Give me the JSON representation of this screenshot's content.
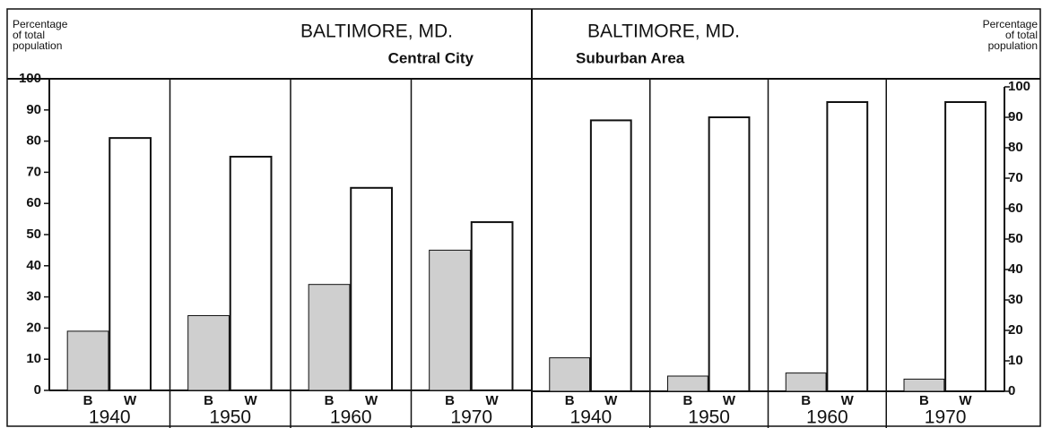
{
  "chart_data": [
    {
      "type": "bar",
      "title": "BALTIMORE, MD.",
      "subtitle": "Central City",
      "y_label": [
        "Percentage",
        "of total",
        "population"
      ],
      "categories": [
        "1940",
        "1950",
        "1960",
        "1970"
      ],
      "series": [
        {
          "name": "B",
          "color": "#cfcfcf",
          "values": [
            19,
            24,
            34,
            45
          ]
        },
        {
          "name": "W",
          "color": "#ffffff",
          "values": [
            81,
            75,
            65,
            54
          ]
        }
      ],
      "ylim": [
        0,
        100
      ],
      "yticks": [
        0,
        10,
        20,
        30,
        40,
        50,
        60,
        70,
        80,
        90,
        100
      ],
      "axis_side": "left"
    },
    {
      "type": "bar",
      "title": "BALTIMORE, MD.",
      "subtitle": "Suburban Area",
      "y_label": [
        "Percentage",
        "of total",
        "population"
      ],
      "categories": [
        "1940",
        "1950",
        "1960",
        "1970"
      ],
      "series": [
        {
          "name": "B",
          "color": "#cfcfcf",
          "values": [
            11,
            5,
            6,
            4
          ]
        },
        {
          "name": "W",
          "color": "#ffffff",
          "values": [
            89,
            90,
            95,
            95
          ]
        }
      ],
      "ylim": [
        0,
        100
      ],
      "yticks": [
        0,
        10,
        20,
        30,
        40,
        50,
        60,
        70,
        80,
        90,
        100
      ],
      "axis_side": "right"
    }
  ]
}
